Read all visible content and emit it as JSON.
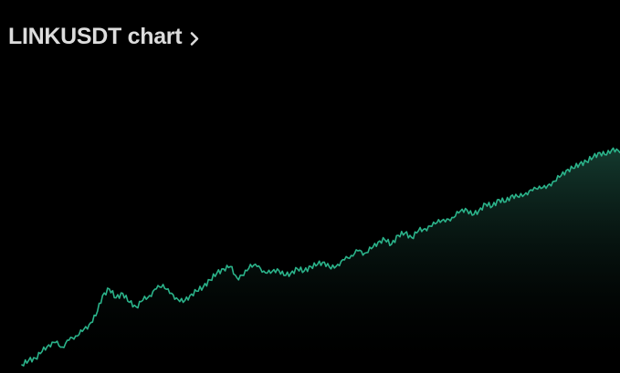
{
  "header": {
    "title": "LINKUSDT chart",
    "chevron_icon": "chevron-right-icon"
  },
  "colors": {
    "background": "#000000",
    "line": "#2bb38a",
    "fill_top": "#1b4d3e",
    "title": "#dcdcdc"
  },
  "chart_data": {
    "type": "area",
    "title": "",
    "xlabel": "",
    "ylabel": "",
    "grid": false,
    "legend": "none",
    "ylim": [
      0,
      100
    ],
    "series": [
      {
        "values": [
          2,
          4,
          5,
          8,
          11,
          12,
          10,
          13,
          15,
          17,
          20,
          24,
          33,
          36,
          32,
          34,
          30,
          28,
          31,
          33,
          36,
          38,
          34,
          32,
          30,
          33,
          35,
          37,
          40,
          43,
          45,
          46,
          41,
          42,
          47,
          46,
          44,
          43,
          45,
          42,
          43,
          45,
          44,
          46,
          47,
          48,
          45,
          47,
          49,
          51,
          53,
          52,
          54,
          57,
          58,
          56,
          60,
          61,
          59,
          62,
          63,
          64,
          67,
          66,
          68,
          70,
          72,
          69,
          71,
          74,
          73,
          76,
          75,
          78,
          77,
          79,
          80,
          82,
          81,
          84,
          86,
          89,
          90,
          92,
          93,
          95,
          97,
          96,
          99,
          97
        ]
      }
    ]
  }
}
